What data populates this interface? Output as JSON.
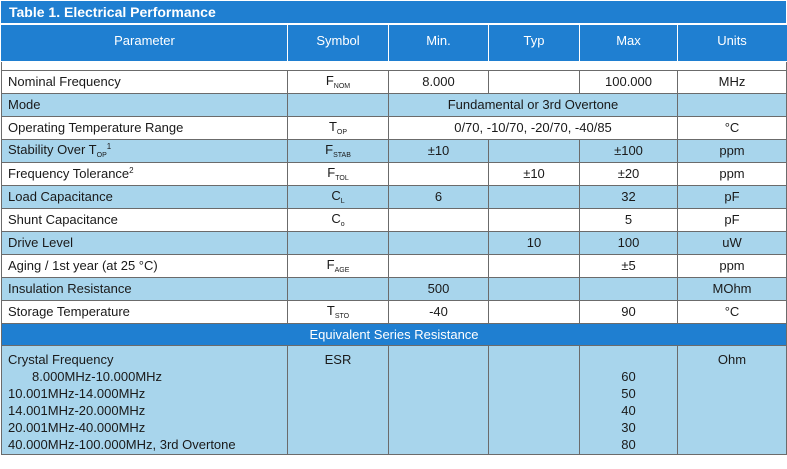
{
  "table": {
    "title": "Table 1. Electrical Performance",
    "headers": [
      "Parameter",
      "Symbol",
      "Min.",
      "Typ",
      "Max",
      "Units"
    ],
    "rows": [
      {
        "param": "Nominal Frequency",
        "sym_main": "F",
        "sym_sub": "NOM",
        "min": "8.000",
        "typ": "",
        "max": "100.000",
        "units": "MHz"
      },
      {
        "param": "Mode",
        "span_value": "Fundamental or 3rd Overtone"
      },
      {
        "param": "Operating Temperature Range",
        "sym_main": "T",
        "sym_sub": "OP",
        "span_value": "0/70, -10/70, -20/70, -40/85",
        "units": "°C"
      },
      {
        "param_main": "Stability Over T",
        "param_sub": "OP",
        "param_sup": "1",
        "sym_main": "F",
        "sym_sub": "STAB",
        "min": "±10",
        "typ": "",
        "max": "±100",
        "units": "ppm"
      },
      {
        "param_main": "Frequency Tolerance",
        "param_sup": "2",
        "sym_main": "F",
        "sym_sub": "TOL",
        "min": "",
        "typ": "±10",
        "max": "±20",
        "units": "ppm"
      },
      {
        "param": "Load Capacitance",
        "sym_main": "C",
        "sym_sub": "L",
        "min": "6",
        "typ": "",
        "max": "32",
        "units": "pF"
      },
      {
        "param": "Shunt Capacitance",
        "sym_main": "C",
        "sym_sub": "o",
        "min": "",
        "typ": "",
        "max": "5",
        "units": "pF"
      },
      {
        "param": "Drive Level",
        "min": "",
        "typ": "10",
        "max": "100",
        "units": "uW"
      },
      {
        "param": "Aging / 1st year (at 25 °C)",
        "sym_main": "F",
        "sym_sub": "AGE",
        "min": "",
        "typ": "",
        "max": "±5",
        "units": "ppm"
      },
      {
        "param": "Insulation Resistance",
        "min": "500",
        "typ": "",
        "max": "",
        "units": "MOhm"
      },
      {
        "param": "Storage Temperature",
        "sym_main": "T",
        "sym_sub": "STO",
        "min": "-40",
        "typ": "",
        "max": "90",
        "units": "°C"
      }
    ],
    "esr": {
      "section_title": "Equivalent Series Resistance",
      "label": "Crystal Frequency",
      "symbol": "ESR",
      "units": "Ohm",
      "ranges": [
        {
          "range": "8.000MHz-10.000MHz",
          "max": "60"
        },
        {
          "range": "10.001MHz-14.000MHz",
          "max": "50"
        },
        {
          "range": "14.001MHz-20.000MHz",
          "max": "40"
        },
        {
          "range": "20.001MHz-40.000MHz",
          "max": "30"
        },
        {
          "range": "40.000MHz-100.000MHz, 3rd Overtone",
          "max": "80"
        }
      ]
    }
  }
}
